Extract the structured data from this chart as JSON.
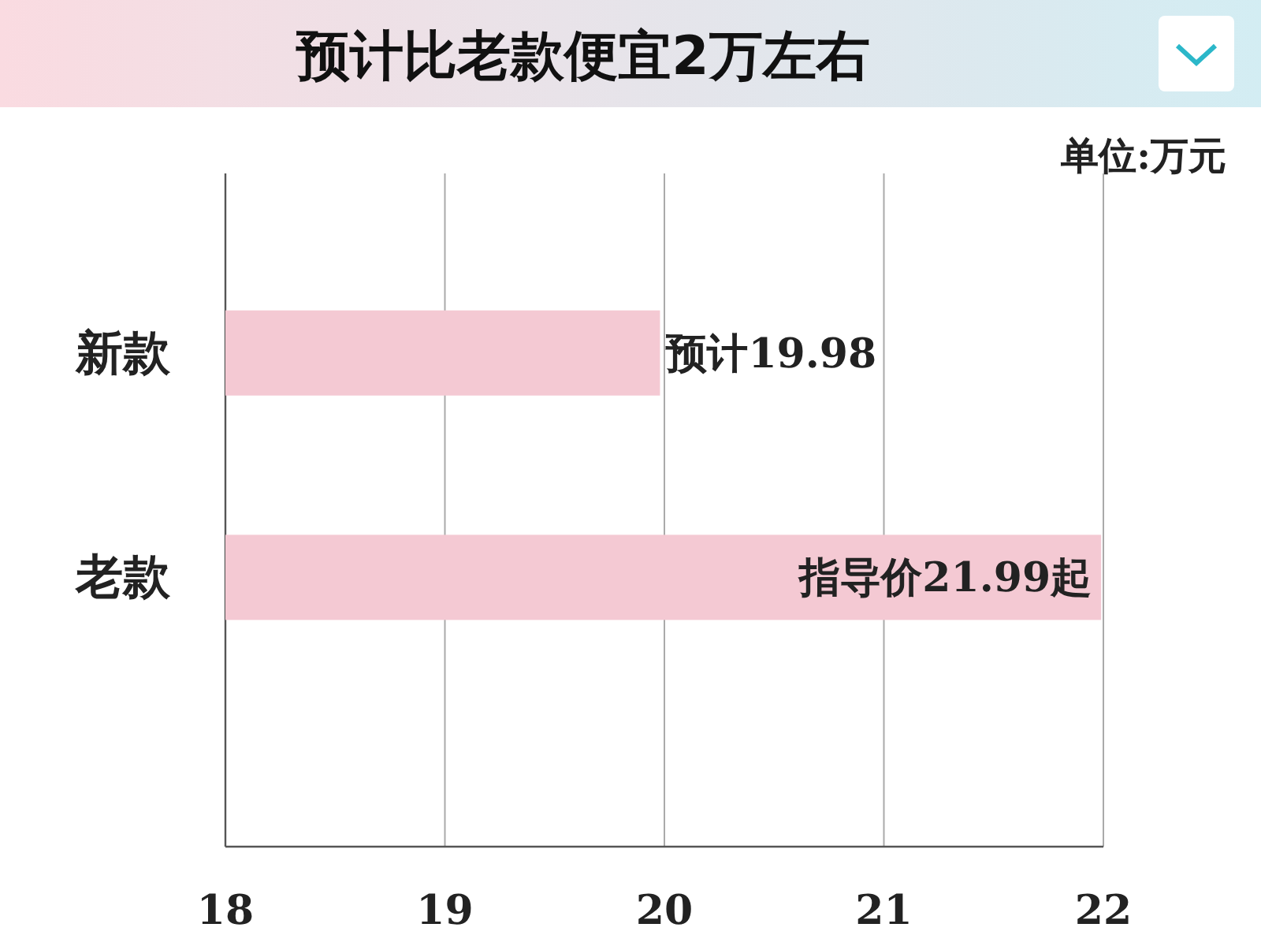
{
  "chart_data": {
    "type": "bar",
    "orientation": "horizontal",
    "title": "预计比老款便宜2万左右",
    "categories": [
      "新款",
      "老款"
    ],
    "values": [
      19.98,
      21.99
    ],
    "value_labels": [
      "预计19.98",
      "指导价21.99起"
    ],
    "color": "#f4c9d3",
    "xlim": [
      18,
      22
    ],
    "xticks": [
      18,
      19,
      20,
      21,
      22
    ],
    "grid": "x",
    "annotations": [
      "单位:万元"
    ]
  }
}
